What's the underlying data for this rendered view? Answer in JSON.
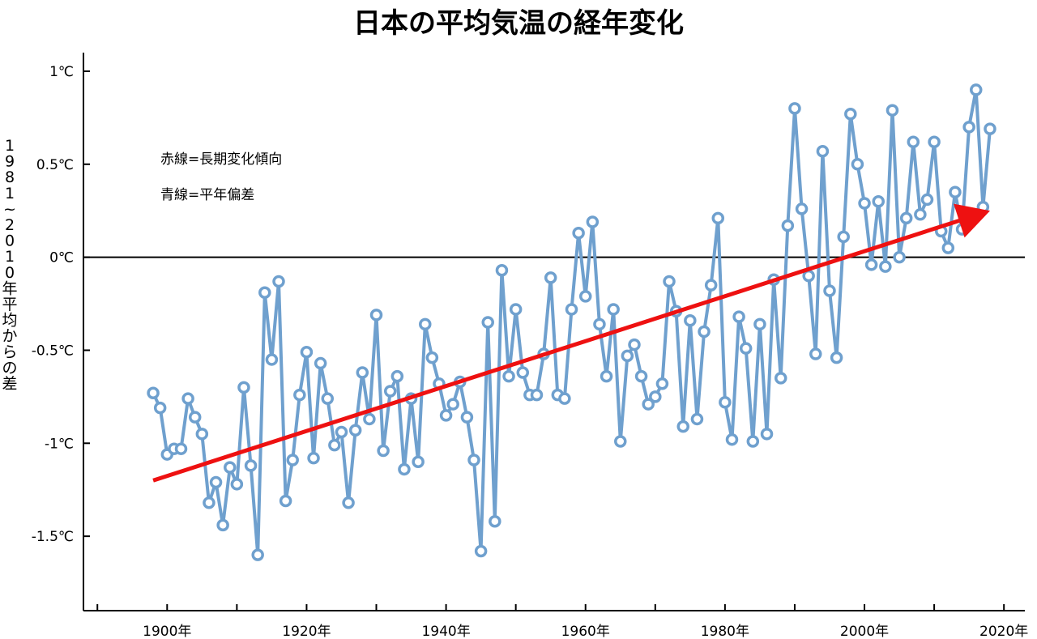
{
  "chart_data": {
    "type": "line",
    "title": "日本の平均気温の経年変化",
    "ylabel": "1981~2010年平均からの差",
    "legend": [
      "赤線=長期変化傾向",
      "青線=平年偏差"
    ],
    "x": [
      1898,
      1899,
      1900,
      1901,
      1902,
      1903,
      1904,
      1905,
      1906,
      1907,
      1908,
      1909,
      1910,
      1911,
      1912,
      1913,
      1914,
      1915,
      1916,
      1917,
      1918,
      1919,
      1920,
      1921,
      1922,
      1923,
      1924,
      1925,
      1926,
      1927,
      1928,
      1929,
      1930,
      1931,
      1932,
      1933,
      1934,
      1935,
      1936,
      1937,
      1938,
      1939,
      1940,
      1941,
      1942,
      1943,
      1944,
      1945,
      1946,
      1947,
      1948,
      1949,
      1950,
      1951,
      1952,
      1953,
      1954,
      1955,
      1956,
      1957,
      1958,
      1959,
      1960,
      1961,
      1962,
      1963,
      1964,
      1965,
      1966,
      1967,
      1968,
      1969,
      1970,
      1971,
      1972,
      1973,
      1974,
      1975,
      1976,
      1977,
      1978,
      1979,
      1980,
      1981,
      1982,
      1983,
      1984,
      1985,
      1986,
      1987,
      1988,
      1989,
      1990,
      1991,
      1992,
      1993,
      1994,
      1995,
      1996,
      1997,
      1998,
      1999,
      2000,
      2001,
      2002,
      2003,
      2004,
      2005,
      2006,
      2007,
      2008,
      2009,
      2010,
      2011,
      2012,
      2013,
      2014,
      2015,
      2016,
      2017,
      2018
    ],
    "series": [
      {
        "values": [
          -0.73,
          -0.81,
          -1.06,
          -1.03,
          -1.03,
          -0.76,
          -0.86,
          -0.95,
          -1.32,
          -1.21,
          -1.44,
          -1.13,
          -1.22,
          -0.7,
          -1.12,
          -1.6,
          -0.19,
          -0.55,
          -0.13,
          -1.31,
          -1.09,
          -0.74,
          -0.51,
          -1.08,
          -0.57,
          -0.76,
          -1.01,
          -0.94,
          -1.32,
          -0.93,
          -0.62,
          -0.87,
          -0.31,
          -1.04,
          -0.72,
          -0.64,
          -1.14,
          -0.76,
          -1.1,
          -0.36,
          -0.54,
          -0.68,
          -0.85,
          -0.79,
          -0.67,
          -0.86,
          -1.09,
          -1.58,
          -0.35,
          -1.42,
          -0.07,
          -0.64,
          -0.28,
          -0.62,
          -0.74,
          -0.74,
          -0.52,
          -0.11,
          -0.74,
          -0.76,
          -0.28,
          0.13,
          -0.21,
          0.19,
          -0.36,
          -0.64,
          -0.28,
          -0.99,
          -0.53,
          -0.47,
          -0.64,
          -0.79,
          -0.75,
          -0.68,
          -0.13,
          -0.29,
          -0.91,
          -0.34,
          -0.87,
          -0.4,
          -0.15,
          0.21,
          -0.78,
          -0.98,
          -0.32,
          -0.49,
          -0.99,
          -0.36,
          -0.95,
          -0.12,
          -0.65,
          0.17,
          0.8,
          0.26,
          -0.1,
          -0.52,
          0.57,
          -0.18,
          -0.54,
          0.11,
          0.77,
          0.5,
          0.29,
          -0.04,
          0.3,
          -0.05,
          0.79,
          0.0,
          0.21,
          0.62,
          0.23,
          0.31,
          0.62,
          0.14,
          0.05,
          0.35,
          0.15,
          0.7,
          0.9,
          0.27,
          0.69
        ],
        "color": "#6fa0ce"
      }
    ],
    "trend": {
      "x": [
        1898,
        2018
      ],
      "y": [
        -1.2,
        0.25
      ],
      "color": "#ee1111"
    },
    "zero_line_color": "#000000",
    "xlim": [
      1888,
      2023
    ],
    "ylim": [
      -1.9,
      1.1
    ],
    "xticks": [
      1900,
      1920,
      1940,
      1960,
      1980,
      2000,
      2020
    ],
    "xtick_labels": [
      "1900年",
      "1920年",
      "1940年",
      "1960年",
      "1980年",
      "2000年",
      "2020年"
    ],
    "yticks": [
      1,
      0.5,
      0,
      -0.5,
      -1,
      -1.5
    ],
    "ytick_labels": [
      "1℃",
      "0.5℃",
      "0℃",
      "-0.5℃",
      "-1℃",
      "-1.5℃"
    ],
    "grid": false
  }
}
